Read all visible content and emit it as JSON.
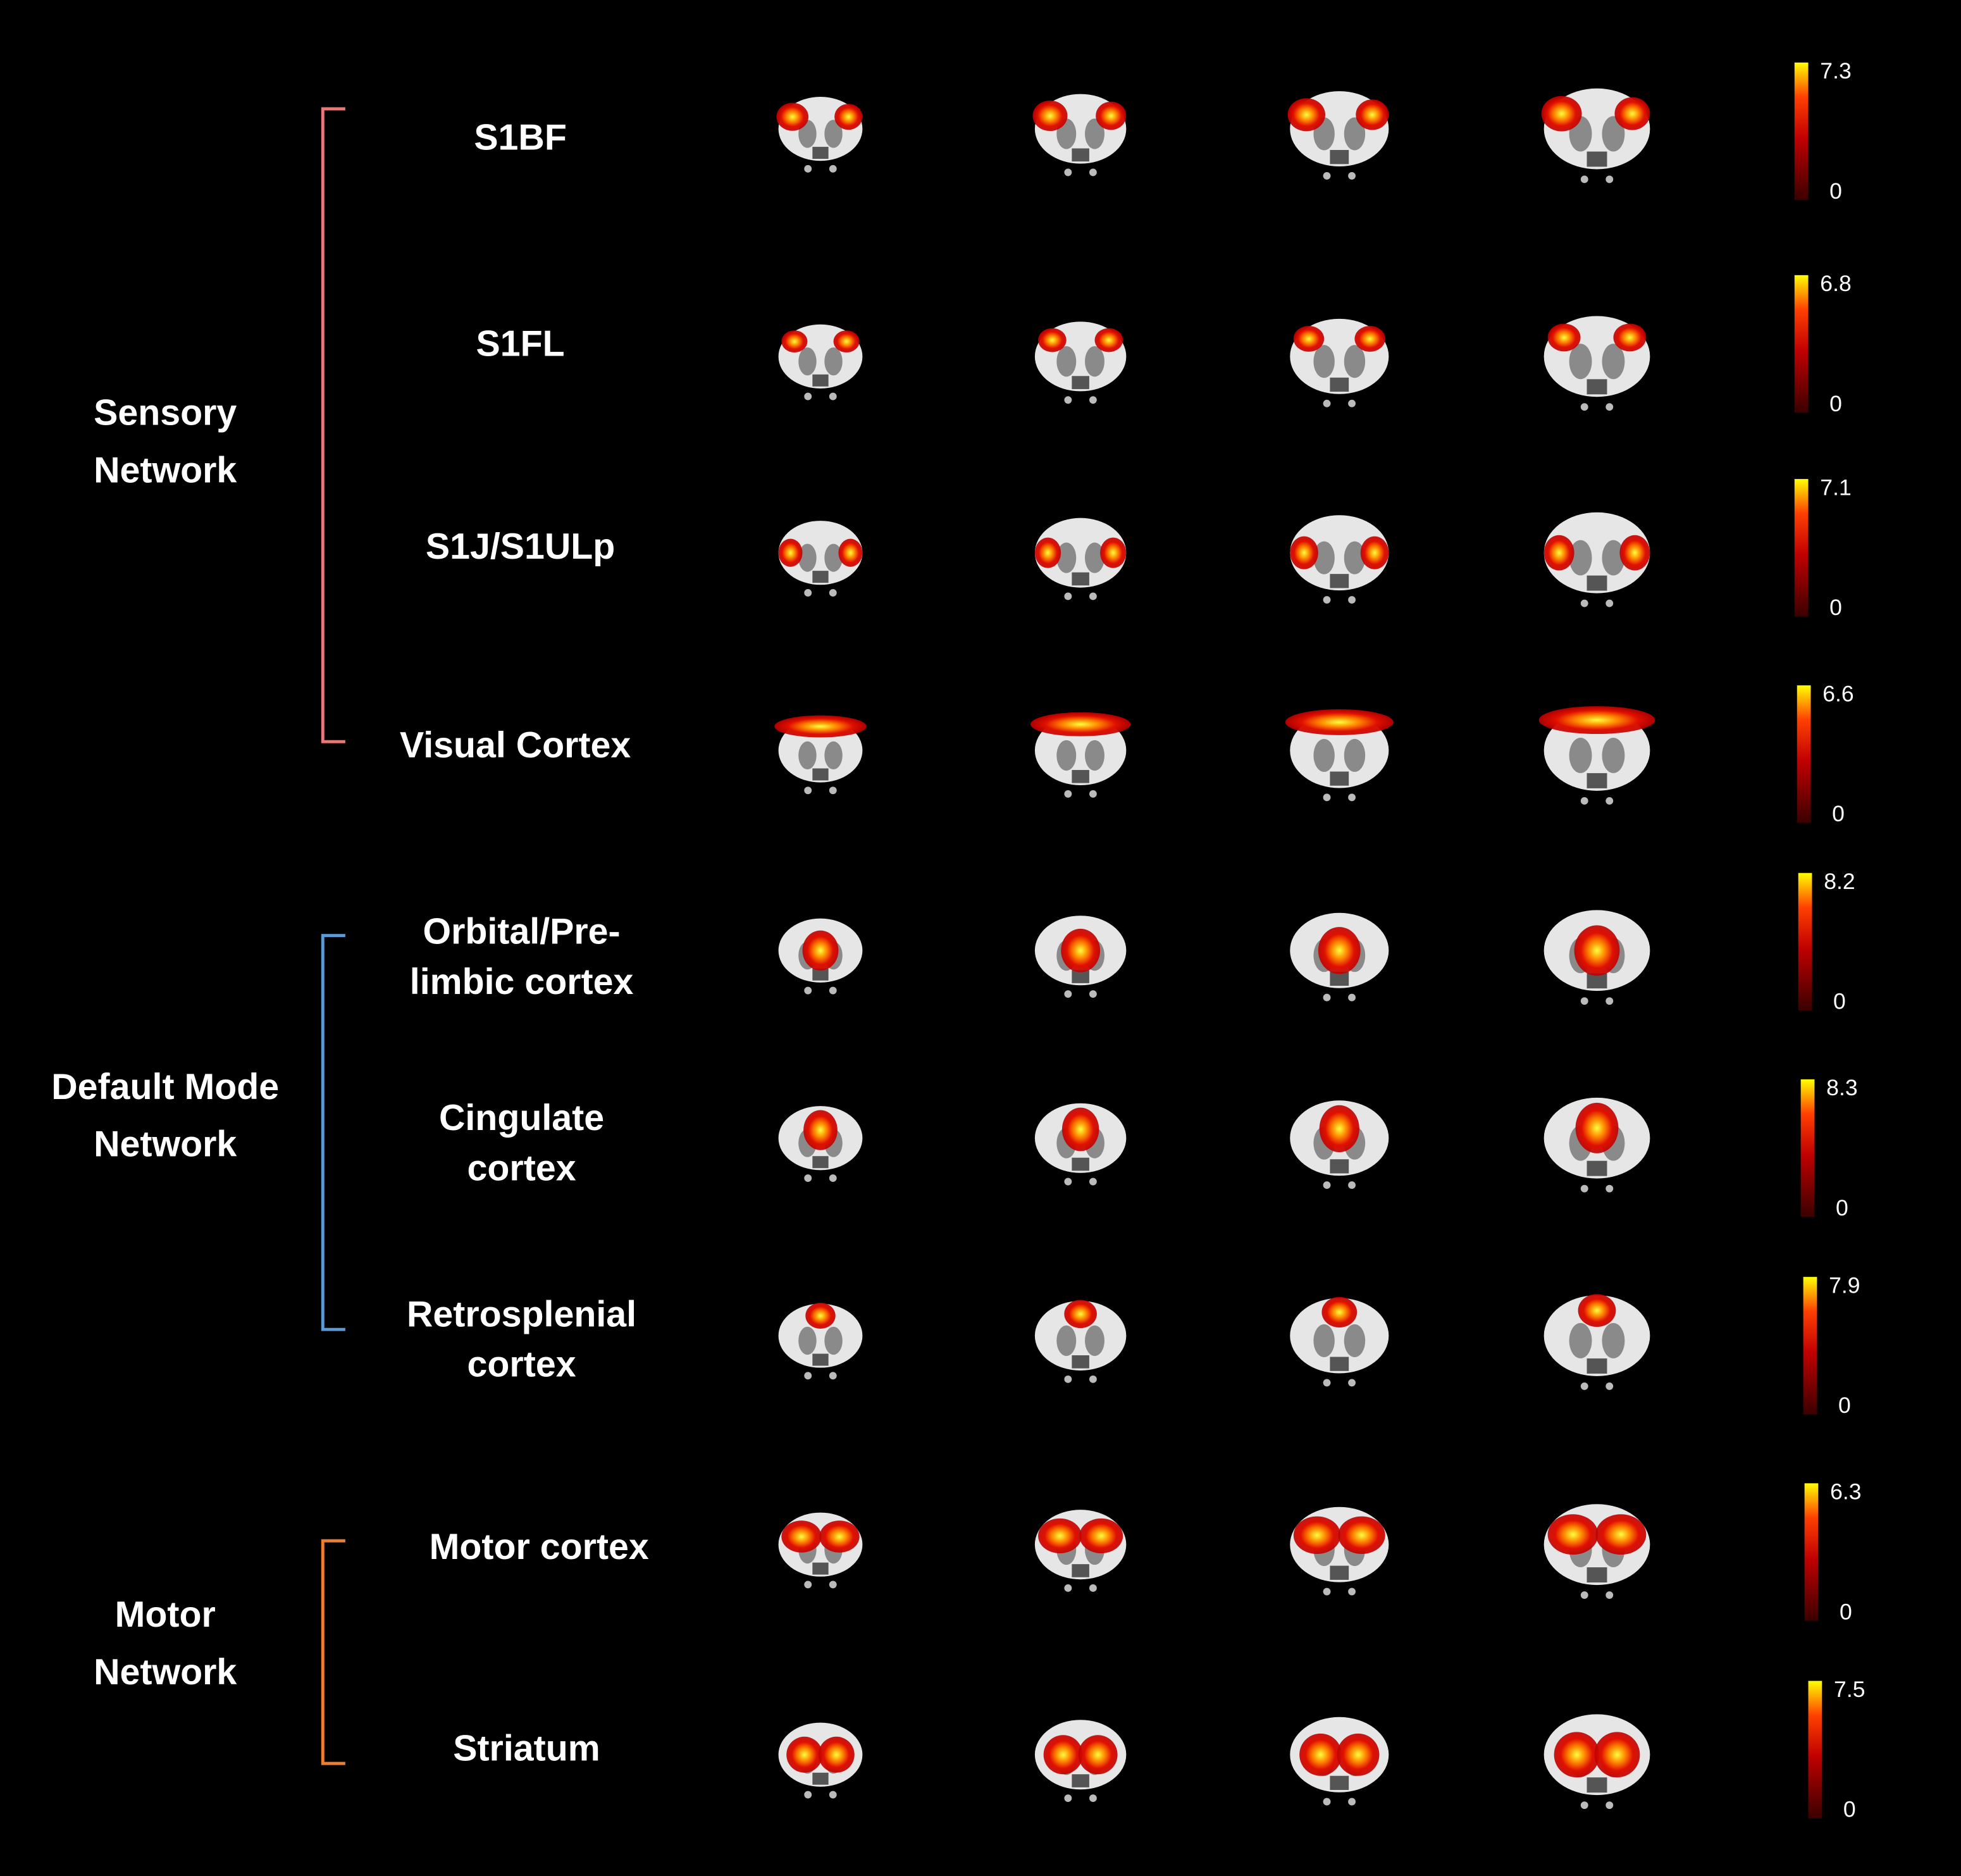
{
  "groups": [
    {
      "label": [
        "Sensory",
        "Network"
      ],
      "rows": [
        {
          "label": [
            "S1BF"
          ],
          "scale_max": "7.3",
          "scale_min": "0"
        },
        {
          "label": [
            "S1FL"
          ],
          "scale_max": "6.8",
          "scale_min": "0"
        },
        {
          "label": [
            "S1J/S1ULp"
          ],
          "scale_max": "7.1",
          "scale_min": "0"
        },
        {
          "label": [
            "Visual Cortex"
          ],
          "scale_max": "6.6",
          "scale_min": "0"
        }
      ]
    },
    {
      "label": [
        "Default Mode",
        "Network"
      ],
      "rows": [
        {
          "label": [
            "Orbital/Pre-",
            "limbic cortex"
          ],
          "scale_max": "8.2",
          "scale_min": "0"
        },
        {
          "label": [
            "Cingulate",
            "cortex"
          ],
          "scale_max": "8.3",
          "scale_min": "0"
        },
        {
          "label": [
            "Retrosplenial",
            "cortex"
          ],
          "scale_max": "7.9",
          "scale_min": "0"
        }
      ]
    },
    {
      "label": [
        "Motor",
        "Network"
      ],
      "rows": [
        {
          "label": [
            "Motor cortex"
          ],
          "scale_max": "6.3",
          "scale_min": "0"
        },
        {
          "label": [
            "Striatum"
          ],
          "scale_max": "7.5",
          "scale_min": "0"
        }
      ]
    }
  ]
}
